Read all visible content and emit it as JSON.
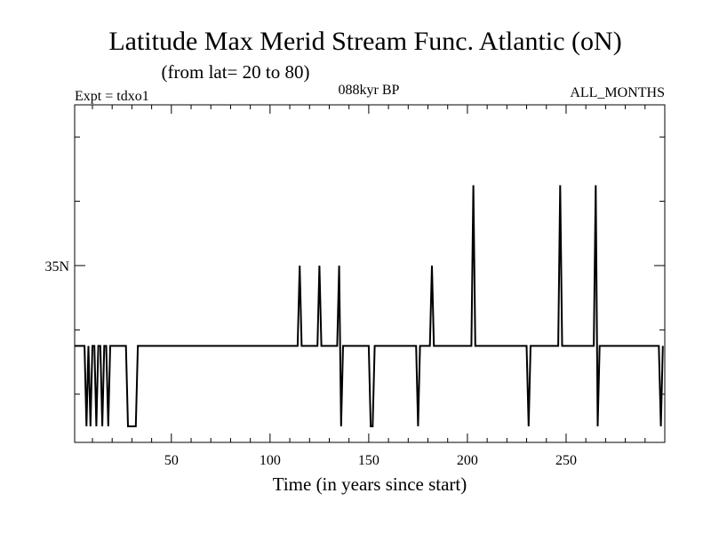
{
  "colors": {
    "background": "#ffffff",
    "line": "#000000",
    "axis": "#000000"
  },
  "chart_data": {
    "type": "line",
    "title": "Latitude Max Merid Stream Func. Atlantic (oN)",
    "subtitle": "(from lat= 20 to 80)",
    "expt_label": "Expt = tdxo1",
    "period_label": "088kyr BP",
    "months_label": "ALL_MONTHS",
    "xlabel": "Time (in years since start)",
    "ylabel": "",
    "xlim": [
      1,
      300
    ],
    "ylim": [
      24,
      45
    ],
    "x_ticks": [
      50,
      100,
      150,
      200,
      250
    ],
    "x_tick_labels": [
      "50",
      "100",
      "150",
      "200",
      "250"
    ],
    "x_minor_step": 10,
    "y_ticks": [
      35
    ],
    "y_tick_labels": [
      "35N"
    ],
    "y_minor_ticks": [
      27,
      31,
      39,
      43
    ],
    "grid": false,
    "series": [
      {
        "name": "",
        "x": [
          1,
          6,
          7,
          8,
          9,
          10,
          11,
          12,
          13,
          14,
          15,
          16,
          17,
          18,
          19,
          20,
          27,
          28,
          32,
          33,
          35,
          50,
          100,
          114,
          115,
          116,
          117,
          124,
          125,
          126,
          134,
          135,
          136,
          137,
          150,
          151,
          152,
          153,
          154,
          155,
          174,
          175,
          176,
          177,
          181,
          182,
          183,
          202,
          203,
          204,
          205,
          230,
          231,
          232,
          246,
          247,
          248,
          264,
          265,
          266,
          267,
          297,
          298,
          299
        ],
        "y": [
          30,
          30,
          25,
          30,
          25,
          30,
          30,
          25,
          30,
          30,
          25,
          30,
          30,
          25,
          30,
          30,
          30,
          25,
          25,
          30,
          30,
          30,
          30,
          30,
          35,
          30,
          30,
          30,
          35,
          30,
          30,
          35,
          25,
          30,
          30,
          25,
          25,
          30,
          30,
          30,
          30,
          25,
          30,
          30,
          30,
          35,
          30,
          30,
          40,
          30,
          30,
          30,
          25,
          30,
          30,
          40,
          30,
          30,
          40,
          25,
          30,
          30,
          25,
          30
        ]
      }
    ]
  }
}
